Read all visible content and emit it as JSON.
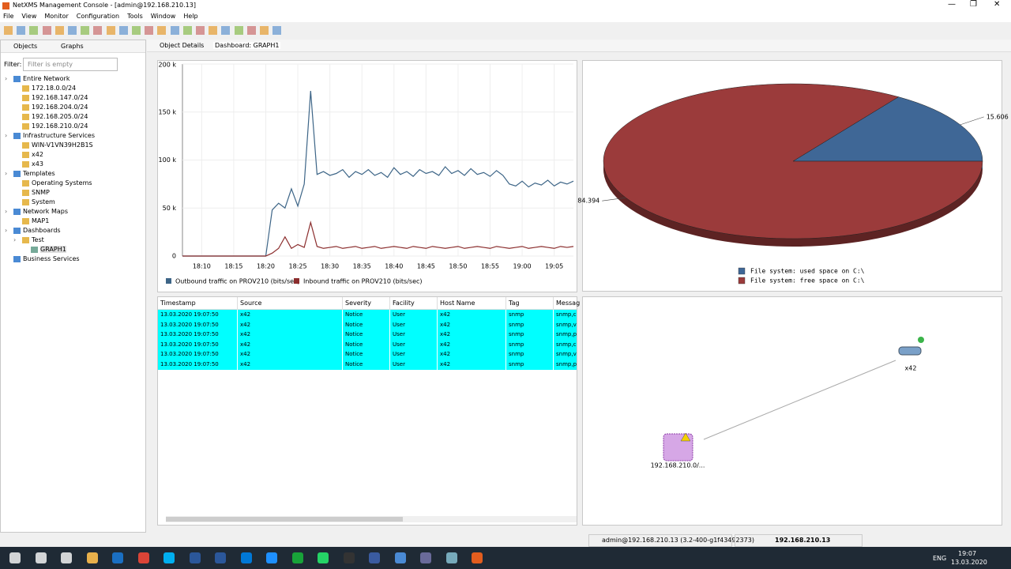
{
  "window": {
    "title": "NetXMS Management Console - [admin@192.168.210.13]"
  },
  "menu": [
    "File",
    "View",
    "Monitor",
    "Configuration",
    "Tools",
    "Window",
    "Help"
  ],
  "left_tabs": [
    "Objects",
    "Graphs"
  ],
  "filter": {
    "label": "Filter:",
    "placeholder": "Filter is empty"
  },
  "tree": [
    {
      "label": "Entire Network",
      "children": [
        {
          "label": "172.18.0.0/24"
        },
        {
          "label": "192.168.147.0/24"
        },
        {
          "label": "192.168.204.0/24"
        },
        {
          "label": "192.168.205.0/24"
        },
        {
          "label": "192.168.210.0/24"
        }
      ]
    },
    {
      "label": "Infrastructure Services",
      "children": [
        {
          "label": "WIN-V1VN39H2B1S"
        },
        {
          "label": "x42"
        },
        {
          "label": "x43"
        }
      ]
    },
    {
      "label": "Templates",
      "children": [
        {
          "label": "Operating Systems"
        },
        {
          "label": "SNMP"
        },
        {
          "label": "System"
        }
      ]
    },
    {
      "label": "Network Maps",
      "children": [
        {
          "label": "MAP1"
        }
      ]
    },
    {
      "label": "Dashboards",
      "children": [
        {
          "label": "Test",
          "children": [
            {
              "label": "GRAPH1"
            }
          ]
        }
      ]
    },
    {
      "label": "Business Services"
    }
  ],
  "editor_tabs": [
    "Object Details",
    "Dashboard: GRAPH1"
  ],
  "chart_data": [
    {
      "type": "line",
      "x": [
        "18:07",
        "18:20",
        "18:21",
        "18:22",
        "18:23",
        "18:24",
        "18:25",
        "18:26",
        "18:27",
        "18:28",
        "18:29",
        "18:30",
        "18:31",
        "18:32",
        "18:33",
        "18:34",
        "18:35",
        "18:36",
        "18:37",
        "18:38",
        "18:39",
        "18:40",
        "18:41",
        "18:42",
        "18:43",
        "18:44",
        "18:45",
        "18:46",
        "18:47",
        "18:48",
        "18:49",
        "18:50",
        "18:51",
        "18:52",
        "18:53",
        "18:54",
        "18:55",
        "18:56",
        "18:57",
        "18:58",
        "18:59",
        "19:00",
        "19:01",
        "19:02",
        "19:03",
        "19:04",
        "19:05",
        "19:06",
        "19:07",
        "19:08"
      ],
      "series": [
        {
          "name": "Outbound traffic on PROV210 (bits/sec)",
          "color": "#3d6587",
          "values": [
            0,
            0,
            48000,
            55000,
            50000,
            70000,
            52000,
            75000,
            172000,
            85000,
            88000,
            84000,
            86000,
            90000,
            82000,
            88000,
            85000,
            90000,
            84000,
            87000,
            82000,
            92000,
            85000,
            88000,
            83000,
            90000,
            86000,
            88000,
            84000,
            93000,
            86000,
            89000,
            84000,
            91000,
            85000,
            87000,
            83000,
            89000,
            84000,
            75000,
            73000,
            78000,
            72000,
            76000,
            74000,
            79000,
            73000,
            77000,
            75000,
            78000
          ]
        },
        {
          "name": "Inbound traffic on PROV210 (bits/sec)",
          "color": "#8b2d2d",
          "values": [
            0,
            0,
            3000,
            8000,
            20000,
            8000,
            12000,
            9000,
            35000,
            10000,
            8000,
            9000,
            10000,
            8000,
            9000,
            10000,
            8000,
            9000,
            10000,
            8000,
            9000,
            10000,
            9000,
            8000,
            10000,
            9000,
            8000,
            10000,
            9000,
            8000,
            9000,
            10000,
            8000,
            9000,
            10000,
            9000,
            8000,
            10000,
            9000,
            8000,
            9000,
            10000,
            8000,
            9000,
            10000,
            9000,
            8000,
            10000,
            9000,
            10000
          ]
        }
      ],
      "xlim": [
        "18:07",
        "19:08"
      ],
      "xticks": [
        "18:10",
        "18:15",
        "18:20",
        "18:25",
        "18:30",
        "18:35",
        "18:40",
        "18:45",
        "18:50",
        "18:55",
        "19:00",
        "19:05"
      ],
      "ylim": [
        0,
        200000
      ],
      "yticks": [
        0,
        {
          "value": 50000,
          "label": "50 k"
        },
        {
          "value": 100000,
          "label": "100 k"
        },
        {
          "value": 150000,
          "label": "150 k"
        },
        {
          "value": 200000,
          "label": "200 k"
        }
      ],
      "grid": true,
      "legend": "bottom"
    },
    {
      "type": "pie",
      "categories": [
        "File system: used space on C:\\",
        "File system: free space on C:\\"
      ],
      "values": [
        15.606,
        84.394
      ],
      "colors": [
        "#3f6796",
        "#9b3b3b"
      ],
      "legend": "bottom"
    }
  ],
  "table": {
    "columns": [
      "Timestamp",
      "Source",
      "Severity",
      "Facility",
      "Host Name",
      "Tag",
      "Messag"
    ],
    "rows": [
      [
        "13.03.2020 19:07:50",
        "x42",
        "Notice",
        "User",
        "x42",
        "snmp",
        "snmp,c"
      ],
      [
        "13.03.2020 19:07:50",
        "x42",
        "Notice",
        "User",
        "x42",
        "snmp",
        "snmp,v"
      ],
      [
        "13.03.2020 19:07:50",
        "x42",
        "Notice",
        "User",
        "x42",
        "snmp",
        "snmp,p"
      ],
      [
        "13.03.2020 19:07:50",
        "x42",
        "Notice",
        "User",
        "x42",
        "snmp",
        "snmp,c"
      ],
      [
        "13.03.2020 19:07:50",
        "x42",
        "Notice",
        "User",
        "x42",
        "snmp",
        "snmp,v"
      ],
      [
        "13.03.2020 19:07:50",
        "x42",
        "Notice",
        "User",
        "x42",
        "snmp",
        "snmp,p"
      ]
    ]
  },
  "map": {
    "nodes": [
      {
        "label": "x42"
      },
      {
        "label": "192.168.210.0/..."
      }
    ]
  },
  "status": {
    "user": "admin@192.168.210.13 (3.2-400-g1f43492373)",
    "server": "192.168.210.13"
  },
  "taskbar": {
    "language": "ENG",
    "time": "19:07",
    "date": "13.03.2020"
  }
}
